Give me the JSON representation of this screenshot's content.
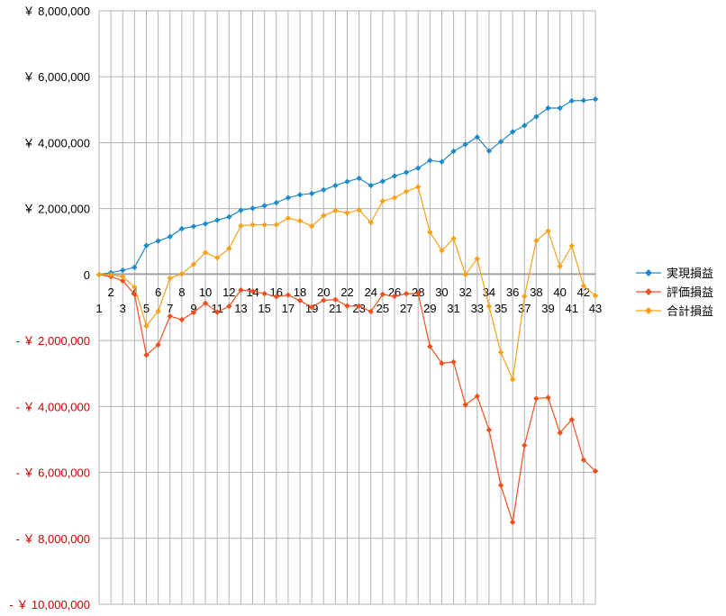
{
  "chart_data": {
    "type": "line",
    "x": [
      1,
      2,
      3,
      4,
      5,
      6,
      7,
      8,
      9,
      10,
      11,
      12,
      13,
      14,
      15,
      16,
      17,
      18,
      19,
      20,
      21,
      22,
      23,
      24,
      25,
      26,
      27,
      28,
      29,
      30,
      31,
      32,
      33,
      34,
      35,
      36,
      37,
      38,
      39,
      40,
      41,
      42,
      43
    ],
    "y_ticks": [
      {
        "value": 8000000,
        "label": "￥ 8,000,000",
        "negative": false
      },
      {
        "value": 6000000,
        "label": "￥ 6,000,000",
        "negative": false
      },
      {
        "value": 4000000,
        "label": "￥ 4,000,000",
        "negative": false
      },
      {
        "value": 2000000,
        "label": "￥ 2,000,000",
        "negative": false
      },
      {
        "value": 0,
        "label": "0",
        "negative": false
      },
      {
        "value": -2000000,
        "label": "- ￥ 2,000,000",
        "negative": true
      },
      {
        "value": -4000000,
        "label": "- ￥ 4,000,000",
        "negative": true
      },
      {
        "value": -6000000,
        "label": "- ￥ 6,000,000",
        "negative": true
      },
      {
        "value": -8000000,
        "label": "- ￥ 8,000,000",
        "negative": true
      },
      {
        "value": -10000000,
        "label": "- ￥ 10,000,000",
        "negative": true
      }
    ],
    "ylim": [
      -10000000,
      8000000
    ],
    "grid": true,
    "legend_position": "right",
    "colors": {
      "positive_label": "#000000",
      "negative_label": "#cc0000",
      "grid": "#b3b3b3"
    },
    "series": [
      {
        "name": "実現損益",
        "color": "#1f8ac9",
        "values": [
          0,
          60000,
          130000,
          220000,
          880000,
          1020000,
          1150000,
          1390000,
          1460000,
          1540000,
          1650000,
          1750000,
          1950000,
          2010000,
          2090000,
          2180000,
          2330000,
          2420000,
          2460000,
          2570000,
          2700000,
          2820000,
          2920000,
          2700000,
          2830000,
          2990000,
          3100000,
          3230000,
          3460000,
          3420000,
          3740000,
          3950000,
          4170000,
          3750000,
          4030000,
          4330000,
          4520000,
          4790000,
          5050000,
          5050000,
          5270000,
          5280000,
          5320000
        ]
      },
      {
        "name": "評価損益",
        "color": "#f0501e",
        "values": [
          0,
          -60000,
          -190000,
          -600000,
          -2440000,
          -2130000,
          -1260000,
          -1370000,
          -1150000,
          -870000,
          -1140000,
          -960000,
          -470000,
          -500000,
          -580000,
          -670000,
          -620000,
          -790000,
          -990000,
          -780000,
          -760000,
          -950000,
          -960000,
          -1120000,
          -600000,
          -660000,
          -580000,
          -570000,
          -2180000,
          -2690000,
          -2650000,
          -3950000,
          -3690000,
          -4710000,
          -6390000,
          -7510000,
          -5180000,
          -3760000,
          -3730000,
          -4800000,
          -4400000,
          -5620000,
          -5960000
        ]
      },
      {
        "name": "合計損益",
        "color": "#f7a11a",
        "values": [
          0,
          0,
          -60000,
          -380000,
          -1560000,
          -1110000,
          -110000,
          20000,
          310000,
          670000,
          510000,
          790000,
          1480000,
          1510000,
          1510000,
          1510000,
          1710000,
          1630000,
          1470000,
          1790000,
          1940000,
          1870000,
          1960000,
          1580000,
          2230000,
          2330000,
          2520000,
          2660000,
          1280000,
          730000,
          1090000,
          0,
          480000,
          -960000,
          -2360000,
          -3180000,
          -660000,
          1030000,
          1320000,
          250000,
          870000,
          -340000,
          -640000
        ]
      }
    ]
  }
}
